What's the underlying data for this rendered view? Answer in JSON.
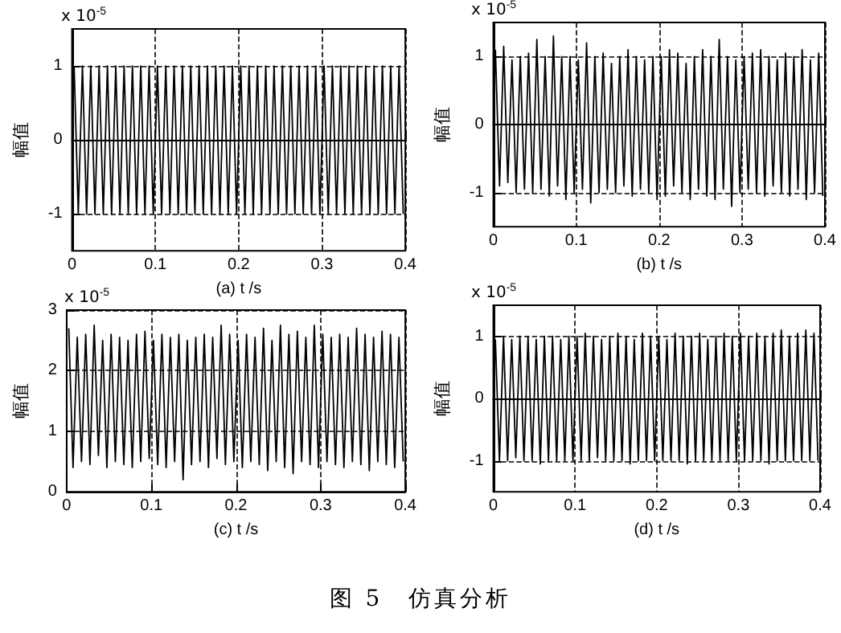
{
  "chart_data": [
    {
      "type": "line",
      "xlabel": "(a) t /s",
      "ylabel": "幅值",
      "annotations": [
        "x 10$^{-5}$"
      ],
      "xlim": [
        0,
        0.4
      ],
      "xticks": [
        0,
        0.1,
        0.2,
        0.3,
        0.4
      ],
      "ylim": [
        -1.5,
        1.5
      ],
      "yticks": [
        -1,
        0,
        1
      ],
      "grid": true,
      "line_style": "solid",
      "x": [
        0.0025,
        0.0075,
        0.0125,
        0.0175,
        0.0225,
        0.0275,
        0.0325,
        0.0375,
        0.0425,
        0.0475,
        0.0525,
        0.0575,
        0.0625,
        0.0675,
        0.0725,
        0.0775,
        0.0825,
        0.0875,
        0.0925,
        0.0975,
        0.1025,
        0.1075,
        0.1125,
        0.1175,
        0.1225,
        0.1275,
        0.1325,
        0.1375,
        0.1425,
        0.1475,
        0.1525,
        0.1575,
        0.1625,
        0.1675,
        0.1725,
        0.1775,
        0.1825,
        0.1875,
        0.1925,
        0.1975,
        0.2025,
        0.2075,
        0.2125,
        0.2175,
        0.2225,
        0.2275,
        0.2325,
        0.2375,
        0.2425,
        0.2475,
        0.2525,
        0.2575,
        0.2625,
        0.2675,
        0.2725,
        0.2775,
        0.2825,
        0.2875,
        0.2925,
        0.2975,
        0.3025,
        0.3075,
        0.3125,
        0.3175,
        0.3225,
        0.3275,
        0.3325,
        0.3375,
        0.3425,
        0.3475,
        0.3525,
        0.3575,
        0.3625,
        0.3675,
        0.3725,
        0.3775,
        0.3825,
        0.3875,
        0.3925,
        0.3975
      ],
      "series": [
        {
          "color": "#000000",
          "values": [
            1,
            -1,
            1,
            -1,
            1,
            -1,
            1,
            -1,
            1,
            -1,
            1,
            -1,
            1,
            -1,
            1,
            -1,
            1,
            -1,
            1,
            -1,
            1,
            -1,
            1,
            -1,
            1,
            -1,
            1,
            -1,
            1,
            -1,
            1,
            -1,
            1,
            -1,
            1,
            -1,
            1,
            -1,
            1,
            -1,
            1,
            -1,
            1,
            -1,
            1,
            -1,
            1,
            -1,
            1,
            -1,
            1,
            -1,
            1,
            -1,
            1,
            -1,
            1,
            -1,
            1,
            -1,
            1,
            -1,
            1,
            -1,
            1,
            -1,
            1,
            -1,
            1,
            -1,
            1,
            -1,
            1,
            -1,
            1,
            -1,
            1,
            -1,
            1,
            -1
          ]
        }
      ]
    },
    {
      "type": "line",
      "xlabel": "(b) t /s",
      "ylabel": "幅值",
      "annotations": [
        "x 10$^{-5}$"
      ],
      "xlim": [
        0,
        0.4
      ],
      "xticks": [
        0,
        0.1,
        0.2,
        0.3,
        0.4
      ],
      "ylim": [
        -1.5,
        1.5
      ],
      "yticks": [
        -1,
        0,
        1
      ],
      "grid": true,
      "line_style": "solid",
      "x": [
        0.0025,
        0.0075,
        0.0125,
        0.0175,
        0.0225,
        0.0275,
        0.0325,
        0.0375,
        0.0425,
        0.0475,
        0.0525,
        0.0575,
        0.0625,
        0.0675,
        0.0725,
        0.0775,
        0.0825,
        0.0875,
        0.0925,
        0.0975,
        0.1025,
        0.1075,
        0.1125,
        0.1175,
        0.1225,
        0.1275,
        0.1325,
        0.1375,
        0.1425,
        0.1475,
        0.1525,
        0.1575,
        0.1625,
        0.1675,
        0.1725,
        0.1775,
        0.1825,
        0.1875,
        0.1925,
        0.1975,
        0.2025,
        0.2075,
        0.2125,
        0.2175,
        0.2225,
        0.2275,
        0.2325,
        0.2375,
        0.2425,
        0.2475,
        0.2525,
        0.2575,
        0.2625,
        0.2675,
        0.2725,
        0.2775,
        0.2825,
        0.2875,
        0.2925,
        0.2975,
        0.3025,
        0.3075,
        0.3125,
        0.3175,
        0.3225,
        0.3275,
        0.3325,
        0.3375,
        0.3425,
        0.3475,
        0.3525,
        0.3575,
        0.3625,
        0.3675,
        0.3725,
        0.3775,
        0.3825,
        0.3875,
        0.3925,
        0.3975
      ],
      "series": [
        {
          "color": "#000000",
          "values": [
            1.1,
            -0.9,
            1.15,
            -0.85,
            0.95,
            -1,
            1,
            -0.95,
            1.05,
            -1,
            1.25,
            -0.95,
            1,
            -1.05,
            1.3,
            -0.9,
            1,
            -1.1,
            1,
            -1,
            0.95,
            -0.95,
            1.2,
            -1.15,
            1,
            -1,
            1.05,
            -0.95,
            0.9,
            -1,
            1,
            -0.9,
            1.1,
            -1.05,
            1,
            -0.95,
            0.95,
            -1,
            1,
            -1.1,
            1,
            -1.05,
            1.1,
            -0.9,
            1.05,
            -1,
            0.9,
            -1.1,
            1,
            -0.95,
            1.1,
            -1.05,
            1,
            -1.1,
            1.25,
            -0.95,
            1,
            -1.2,
            0.95,
            -1,
            1,
            -0.95,
            1.05,
            -1,
            1.1,
            -1.05,
            1,
            -0.9,
            0.95,
            -1,
            1.05,
            -1.05,
            1,
            -0.95,
            1.1,
            -1.1,
            0.95,
            -1,
            1.05,
            -1.05
          ]
        }
      ]
    },
    {
      "type": "line",
      "xlabel": "(c) t /s",
      "ylabel": "幅值",
      "annotations": [
        "x 10$^{-5}$"
      ],
      "xlim": [
        0,
        0.4
      ],
      "xticks": [
        0,
        0.1,
        0.2,
        0.3,
        0.4
      ],
      "ylim": [
        0,
        3
      ],
      "yticks": [
        0,
        1,
        2,
        3
      ],
      "grid": true,
      "line_style": "solid",
      "x": [
        0.0025,
        0.0075,
        0.0125,
        0.0175,
        0.0225,
        0.0275,
        0.0325,
        0.0375,
        0.0425,
        0.0475,
        0.0525,
        0.0575,
        0.0625,
        0.0675,
        0.0725,
        0.0775,
        0.0825,
        0.0875,
        0.0925,
        0.0975,
        0.1025,
        0.1075,
        0.1125,
        0.1175,
        0.1225,
        0.1275,
        0.1325,
        0.1375,
        0.1425,
        0.1475,
        0.1525,
        0.1575,
        0.1625,
        0.1675,
        0.1725,
        0.1775,
        0.1825,
        0.1875,
        0.1925,
        0.1975,
        0.2025,
        0.2075,
        0.2125,
        0.2175,
        0.2225,
        0.2275,
        0.2325,
        0.2375,
        0.2425,
        0.2475,
        0.2525,
        0.2575,
        0.2625,
        0.2675,
        0.2725,
        0.2775,
        0.2825,
        0.2875,
        0.2925,
        0.2975,
        0.3025,
        0.3075,
        0.3125,
        0.3175,
        0.3225,
        0.3275,
        0.3325,
        0.3375,
        0.3425,
        0.3475,
        0.3525,
        0.3575,
        0.3625,
        0.3675,
        0.3725,
        0.3775,
        0.3825,
        0.3875,
        0.3925,
        0.3975
      ],
      "series": [
        {
          "color": "#000000",
          "values": [
            2.7,
            0.4,
            2.55,
            0.5,
            2.6,
            0.45,
            2.75,
            0.6,
            2.5,
            0.4,
            2.6,
            0.5,
            2.55,
            0.45,
            2.5,
            0.4,
            2.6,
            0.5,
            2.65,
            0.55,
            2.5,
            0.45,
            2.6,
            0.4,
            2.55,
            0.5,
            2.6,
            0.2,
            2.5,
            0.45,
            2.55,
            0.5,
            2.6,
            0.4,
            2.55,
            0.55,
            2.75,
            0.45,
            2.6,
            0.5,
            2.5,
            0.4,
            2.6,
            0.5,
            2.55,
            0.45,
            2.7,
            0.35,
            2.5,
            0.5,
            2.75,
            0.4,
            2.6,
            0.3,
            2.65,
            0.5,
            2.55,
            0.45,
            2.75,
            0.4,
            2.6,
            0.5,
            2.55,
            0.45,
            2.6,
            0.4,
            2.55,
            0.5,
            2.7,
            0.45,
            2.6,
            0.35,
            2.55,
            0.5,
            2.65,
            0.45,
            2.6,
            0.4,
            2.55,
            0.5
          ]
        }
      ]
    },
    {
      "type": "line",
      "xlabel": "(d) t /s",
      "ylabel": "幅值",
      "annotations": [
        "x 10$^{-5}$",
        "图 5　仿真分析"
      ],
      "xlim": [
        0,
        0.4
      ],
      "xticks": [
        0,
        0.1,
        0.2,
        0.3,
        0.4
      ],
      "ylim": [
        -1.5,
        1.5
      ],
      "yticks": [
        -1,
        0,
        1
      ],
      "grid": true,
      "line_style": "solid",
      "x": [
        0.0025,
        0.0075,
        0.0125,
        0.0175,
        0.0225,
        0.0275,
        0.0325,
        0.0375,
        0.0425,
        0.0475,
        0.0525,
        0.0575,
        0.0625,
        0.0675,
        0.0725,
        0.0775,
        0.0825,
        0.0875,
        0.0925,
        0.0975,
        0.1025,
        0.1075,
        0.1125,
        0.1175,
        0.1225,
        0.1275,
        0.1325,
        0.1375,
        0.1425,
        0.1475,
        0.1525,
        0.1575,
        0.1625,
        0.1675,
        0.1725,
        0.1775,
        0.1825,
        0.1875,
        0.1925,
        0.1975,
        0.2025,
        0.2075,
        0.2125,
        0.2175,
        0.2225,
        0.2275,
        0.2325,
        0.2375,
        0.2425,
        0.2475,
        0.2525,
        0.2575,
        0.2625,
        0.2675,
        0.2725,
        0.2775,
        0.2825,
        0.2875,
        0.2925,
        0.2975,
        0.3025,
        0.3075,
        0.3125,
        0.3175,
        0.3225,
        0.3275,
        0.3325,
        0.3375,
        0.3425,
        0.3475,
        0.3525,
        0.3575,
        0.3625,
        0.3675,
        0.3725,
        0.3775,
        0.3825,
        0.3875,
        0.3925,
        0.3975
      ],
      "series": [
        {
          "color": "#000000",
          "values": [
            0.95,
            -1,
            1,
            -1,
            0.95,
            -0.95,
            1,
            -1,
            1,
            -1,
            0.95,
            -1.05,
            1,
            -1,
            1,
            -1,
            0.95,
            -1,
            1,
            -1,
            1,
            -1,
            1.05,
            -1,
            1,
            -0.95,
            0.95,
            -1,
            1,
            -1,
            1.05,
            -1,
            1,
            -1.05,
            0.95,
            -1,
            1.05,
            -1,
            1,
            -1,
            1,
            -1,
            0.95,
            -1,
            1.05,
            -1,
            1,
            -1.05,
            1,
            -1,
            1.05,
            -1,
            0.95,
            -1,
            1,
            -1,
            1.05,
            -1,
            1,
            -1,
            1.05,
            -1,
            1,
            -1,
            1.05,
            -1,
            1,
            -1.05,
            1.05,
            -1,
            1.1,
            -1,
            1,
            -1,
            1.05,
            -1,
            1.1,
            -1,
            1.05,
            -1
          ]
        }
      ]
    }
  ]
}
